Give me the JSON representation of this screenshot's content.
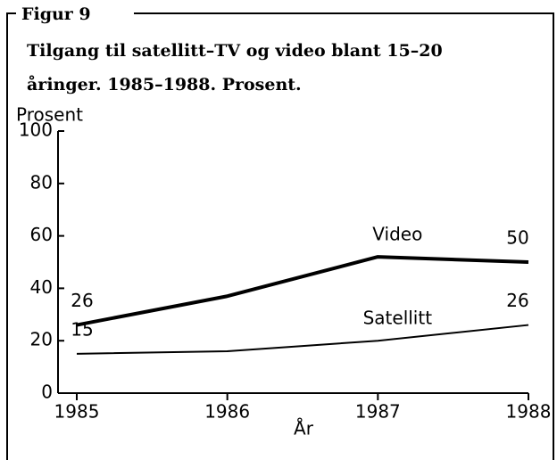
{
  "chart_data": {
    "type": "line",
    "figure_label": "Figur 9",
    "title": [
      "Tilgang til satellitt–TV og video blant 15–20",
      "åringer. 1985–1988.  Prosent."
    ],
    "y_label": "Prosent",
    "x_label": "År",
    "x": [
      1985,
      1986,
      1987,
      1988
    ],
    "xlim": [
      1985,
      1988
    ],
    "xticks": [
      1985,
      1986,
      1987,
      1988
    ],
    "ylim": [
      0,
      100
    ],
    "yticks": [
      0,
      20,
      40,
      60,
      80,
      100
    ],
    "series": [
      {
        "name": "Video",
        "color": "#000000",
        "values": [
          26,
          37,
          52,
          50
        ],
        "value_labels": [
          26,
          null,
          null,
          50
        ]
      },
      {
        "name": "Satellitt",
        "color": "#000000",
        "values": [
          15,
          16,
          20,
          26
        ],
        "value_labels": [
          15,
          null,
          null,
          26
        ]
      }
    ]
  }
}
